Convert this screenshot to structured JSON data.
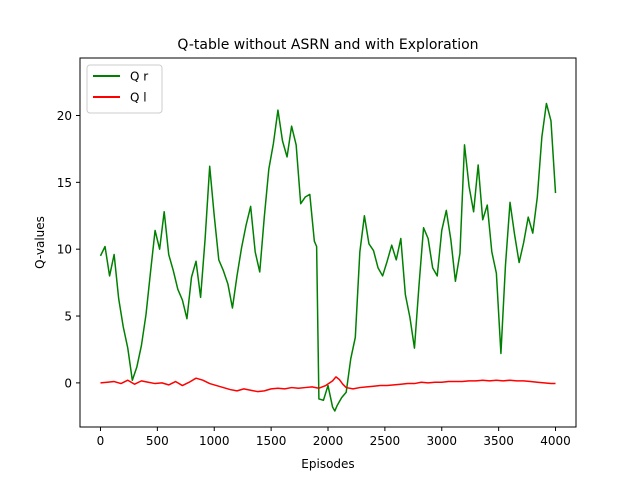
{
  "chart_data": {
    "type": "line",
    "title": "Q-table without ASRN and with Exploration",
    "xlabel": "Episodes",
    "ylabel": "Q-values",
    "xlim": [
      -180,
      4180
    ],
    "ylim": [
      -3.3,
      24.3
    ],
    "xticks": [
      0,
      500,
      1000,
      1500,
      2000,
      2500,
      3000,
      3500,
      4000
    ],
    "xtick_labels": [
      "0",
      "500",
      "1000",
      "1500",
      "2000",
      "2500",
      "3000",
      "3500",
      "4000"
    ],
    "yticks": [
      0,
      5,
      10,
      15,
      20
    ],
    "ytick_labels": [
      "0",
      "5",
      "10",
      "15",
      "20"
    ],
    "grid": false,
    "legend_position": "top-left",
    "series": [
      {
        "name": "Q r",
        "color": "#008000",
        "x": [
          0,
          40,
          80,
          120,
          160,
          200,
          240,
          280,
          320,
          360,
          400,
          440,
          480,
          520,
          560,
          600,
          640,
          680,
          720,
          760,
          800,
          840,
          880,
          920,
          960,
          1000,
          1040,
          1080,
          1120,
          1160,
          1200,
          1240,
          1280,
          1320,
          1360,
          1400,
          1440,
          1480,
          1520,
          1560,
          1600,
          1640,
          1680,
          1720,
          1760,
          1800,
          1840,
          1880,
          1900,
          1920,
          1960,
          2000,
          2040,
          2060,
          2080,
          2120,
          2160,
          2200,
          2240,
          2280,
          2320,
          2360,
          2400,
          2440,
          2480,
          2520,
          2560,
          2600,
          2640,
          2680,
          2720,
          2760,
          2800,
          2840,
          2880,
          2920,
          2960,
          3000,
          3040,
          3080,
          3120,
          3160,
          3200,
          3240,
          3280,
          3320,
          3360,
          3400,
          3440,
          3480,
          3520,
          3560,
          3600,
          3640,
          3680,
          3720,
          3760,
          3800,
          3840,
          3880,
          3920,
          3960,
          4000
        ],
        "values": [
          9.5,
          10.2,
          8.0,
          9.6,
          6.3,
          4.2,
          2.6,
          0.2,
          1.2,
          2.8,
          5.1,
          8.3,
          11.4,
          10.0,
          12.8,
          9.6,
          8.4,
          7.0,
          6.2,
          4.8,
          7.9,
          9.1,
          6.4,
          10.8,
          16.2,
          12.5,
          9.2,
          8.4,
          7.4,
          5.6,
          8.0,
          10.1,
          11.8,
          13.2,
          9.8,
          8.3,
          12.4,
          16.0,
          17.9,
          20.4,
          18.1,
          16.9,
          19.2,
          17.8,
          13.4,
          13.9,
          14.1,
          10.6,
          10.2,
          -1.2,
          -1.3,
          -0.2,
          -1.8,
          -2.1,
          -1.7,
          -1.1,
          -0.7,
          1.8,
          3.4,
          9.8,
          12.5,
          10.4,
          9.9,
          8.6,
          8.0,
          9.1,
          10.3,
          9.2,
          10.8,
          6.6,
          4.9,
          2.6,
          7.3,
          11.6,
          10.8,
          8.6,
          8.0,
          11.4,
          12.9,
          10.7,
          7.6,
          9.7,
          17.8,
          14.7,
          12.8,
          16.3,
          12.2,
          13.3,
          9.8,
          8.2,
          2.2,
          8.8,
          13.5,
          11.1,
          9.0,
          10.5,
          12.4,
          11.2,
          13.9,
          18.4,
          20.9,
          19.6,
          14.2
        ]
      },
      {
        "name": "Q l",
        "color": "#ff0000",
        "x": [
          0,
          60,
          120,
          180,
          240,
          300,
          360,
          420,
          480,
          540,
          600,
          660,
          720,
          780,
          840,
          900,
          960,
          1020,
          1080,
          1140,
          1200,
          1260,
          1320,
          1380,
          1440,
          1500,
          1560,
          1620,
          1680,
          1740,
          1800,
          1860,
          1920,
          1980,
          2040,
          2070,
          2100,
          2130,
          2160,
          2220,
          2280,
          2340,
          2400,
          2460,
          2520,
          2580,
          2640,
          2700,
          2760,
          2820,
          2880,
          2940,
          3000,
          3060,
          3120,
          3180,
          3240,
          3300,
          3360,
          3420,
          3480,
          3540,
          3600,
          3660,
          3720,
          3780,
          3840,
          3900,
          3960,
          4000
        ],
        "values": [
          0.0,
          0.05,
          0.1,
          -0.05,
          0.2,
          -0.1,
          0.15,
          0.05,
          -0.05,
          0.0,
          -0.15,
          0.1,
          -0.2,
          0.05,
          0.35,
          0.2,
          -0.05,
          -0.2,
          -0.35,
          -0.5,
          -0.6,
          -0.45,
          -0.55,
          -0.65,
          -0.6,
          -0.45,
          -0.4,
          -0.45,
          -0.35,
          -0.4,
          -0.35,
          -0.3,
          -0.4,
          -0.2,
          0.15,
          0.45,
          0.25,
          -0.1,
          -0.35,
          -0.45,
          -0.35,
          -0.3,
          -0.25,
          -0.2,
          -0.2,
          -0.15,
          -0.1,
          -0.05,
          -0.05,
          0.05,
          0.0,
          0.05,
          0.05,
          0.1,
          0.1,
          0.1,
          0.15,
          0.15,
          0.2,
          0.15,
          0.2,
          0.15,
          0.2,
          0.15,
          0.15,
          0.1,
          0.05,
          0.0,
          -0.05,
          -0.05
        ]
      }
    ]
  }
}
